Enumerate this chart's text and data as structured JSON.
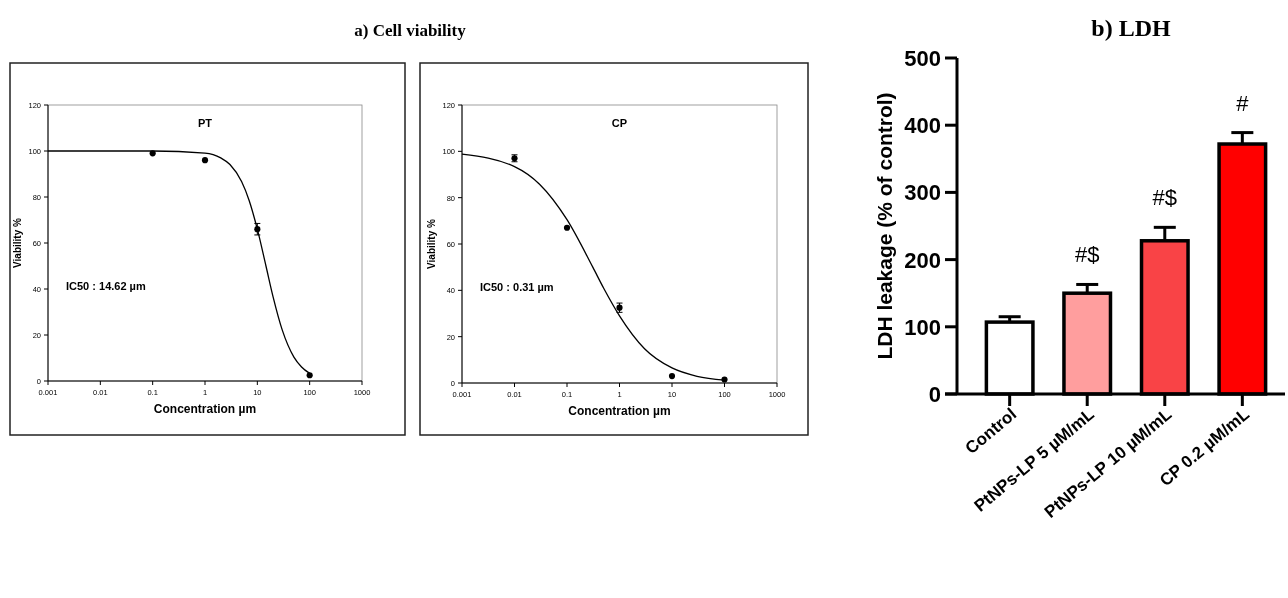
{
  "chart_data": [
    {
      "type": "scatter",
      "title": "a) Cell viability",
      "xlabel": "Concentration µm",
      "ylabel": "Viability %",
      "log": "x",
      "xlim": [
        0.001,
        1000
      ],
      "xticks": [
        0.001,
        0.01,
        0.1,
        1,
        10,
        100,
        1000
      ],
      "ylim": [
        0,
        120
      ],
      "yticks": [
        0,
        20,
        40,
        60,
        80,
        100,
        120
      ],
      "annotations": [
        "PT",
        "IC50 : 14.62 µm"
      ],
      "series": [
        {
          "type": "scatter",
          "marker": "circle",
          "color": "#000000",
          "x": [
            0.1,
            1,
            10,
            100
          ],
          "values": [
            99,
            96,
            66,
            2.5
          ],
          "errors": [
            null,
            null,
            2.5,
            null
          ]
        },
        {
          "type": "line",
          "color": "#000000",
          "x": [
            0.001,
            0.01,
            0.1,
            1,
            2,
            3,
            5,
            7,
            10,
            14.62,
            20,
            30,
            50,
            70,
            100
          ],
          "values": [
            100,
            100,
            100,
            99.1,
            97,
            94.1,
            86.7,
            78.4,
            66,
            50,
            36.6,
            22.1,
            10.4,
            6.1,
            3.3
          ]
        }
      ]
    },
    {
      "type": "scatter",
      "xlabel": "Concentration µm",
      "ylabel": "Viability %",
      "log": "x",
      "xlim": [
        0.001,
        1000
      ],
      "xticks": [
        0.001,
        0.01,
        0.1,
        1,
        10,
        100,
        1000
      ],
      "ylim": [
        0,
        120
      ],
      "yticks": [
        0,
        20,
        40,
        60,
        80,
        100,
        120
      ],
      "annotations": [
        "CP",
        "IC50 : 0.31 µm"
      ],
      "series": [
        {
          "type": "scatter",
          "marker": "circle",
          "color": "#000000",
          "x": [
            0.01,
            0.1,
            1,
            10,
            100
          ],
          "values": [
            97,
            67,
            32.5,
            3,
            1.5
          ],
          "errors": [
            1.5,
            null,
            2,
            null,
            null
          ]
        },
        {
          "type": "line",
          "color": "#000000",
          "x": [
            0.001,
            0.01,
            0.03,
            0.1,
            0.31,
            0.5,
            1,
            3,
            10,
            30,
            100
          ],
          "values": [
            98.8,
            93.4,
            85.8,
            70.5,
            50,
            40.9,
            29,
            14.8,
            6.5,
            2.9,
            1.2
          ]
        }
      ]
    },
    {
      "type": "bar",
      "title": "b) LDH",
      "ylabel": "LDH leakage (% of control)",
      "categories": [
        "Control",
        "PtNPs-LP 5 µM/mL",
        "PtNPs-LP 10 µM/mL",
        "CP 0.2 µM/mL"
      ],
      "values": [
        107,
        150,
        228,
        372
      ],
      "errors": [
        8,
        13,
        20,
        17
      ],
      "colors": [
        "#ffffff",
        "#ff9e9e",
        "#f94346",
        "#ff0000"
      ],
      "ylim": [
        0,
        500
      ],
      "yticks": [
        0,
        100,
        200,
        300,
        400,
        500
      ],
      "annotations": [
        "#$",
        "#$",
        "#"
      ]
    }
  ]
}
